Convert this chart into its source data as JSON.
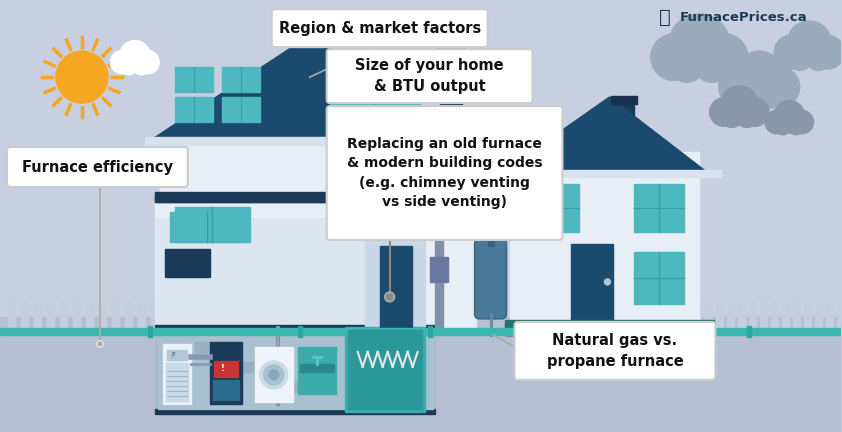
{
  "bg_color": "#c8cfe0",
  "ground_color": "#b5bfd4",
  "title": "FurnacePrices.ca",
  "labels": {
    "region": "Region & market factors",
    "size": "Size of your home\n& BTU output",
    "replacing": "Replacing an old furnace\n& modern building codes\n(e.g. chimney venting\nvs side venting)",
    "efficiency": "Furnace efficiency",
    "natural_gas": "Natural gas vs.\npropane furnace"
  },
  "house_wall": "#e8eef5",
  "house_wall2": "#dce6f0",
  "house_roof": "#1a4a6e",
  "window_color": "#4db8c0",
  "window_dark": "#2a7a90",
  "door_color": "#1a4a6e",
  "chimney_color": "#1a3a58",
  "fence_color": "#c5cedd",
  "sun_color": "#f5a623",
  "cloud_white": "#ffffff",
  "cloud_dark": "#9aabbc",
  "cloud_dark2": "#8898aa",
  "label_bg": "#ffffff",
  "label_border": "#cccccc",
  "teal_line": "#3ab8b0",
  "basement_bg": "#aabccc",
  "basement_floor": "#1a3a58",
  "ground_strip": "#b5bfd4",
  "logo_color": "#1a3a58",
  "connector_color": "#aaaaaa",
  "garage_accent": "#1a3a58",
  "pipe_gray": "#8090a8",
  "small_house_wall": "#e8eef5"
}
